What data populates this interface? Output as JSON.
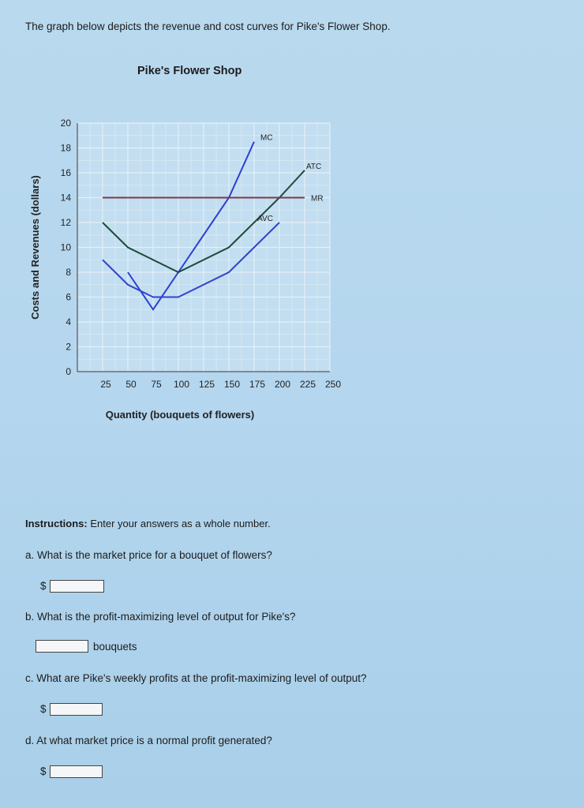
{
  "intro": "The graph below depicts the revenue and cost curves for Pike's Flower Shop.",
  "chart_data": {
    "type": "line",
    "title": "Pike's Flower Shop",
    "xlabel": "Quantity (bouquets of flowers)",
    "ylabel": "Costs and Revenues (dollars)",
    "xlim": [
      0,
      250
    ],
    "ylim": [
      0,
      20
    ],
    "x_ticks": [
      25,
      50,
      75,
      100,
      125,
      150,
      175,
      200,
      225,
      250
    ],
    "y_ticks": [
      0,
      2,
      4,
      6,
      8,
      10,
      12,
      14,
      16,
      18,
      20
    ],
    "grid": true,
    "series": [
      {
        "name": "MC",
        "color": "#2b3fd0",
        "x": [
          50,
          75,
          100,
          150,
          175
        ],
        "y": [
          8,
          5,
          8,
          14,
          18.5
        ]
      },
      {
        "name": "ATC",
        "color": "#1f4a3a",
        "x": [
          25,
          50,
          100,
          150,
          200,
          225
        ],
        "y": [
          12,
          10,
          8,
          10,
          14,
          16.2
        ]
      },
      {
        "name": "MR",
        "color": "#7a3b4b",
        "x": [
          25,
          225
        ],
        "y": [
          14,
          14
        ]
      },
      {
        "name": "AVC",
        "color": "#3344cc",
        "x": [
          25,
          50,
          75,
          100,
          150,
          200
        ],
        "y": [
          9,
          7,
          6,
          6,
          8,
          12
        ]
      }
    ]
  },
  "instructions": {
    "label": "Instructions:",
    "text": " Enter your answers as a whole number."
  },
  "questions": {
    "a": {
      "text": "a. What is the market price for a bouquet of flowers?",
      "prefix": "$",
      "value": ""
    },
    "b": {
      "text": "b. What is the profit-maximizing level of output for Pike's?",
      "suffix": "bouquets",
      "value": ""
    },
    "c": {
      "text": "c. What are Pike's weekly profits at the profit-maximizing level of output?",
      "prefix": "$",
      "value": ""
    },
    "d": {
      "text": "d. At what market price is a normal profit generated?",
      "prefix": "$",
      "value": ""
    }
  }
}
